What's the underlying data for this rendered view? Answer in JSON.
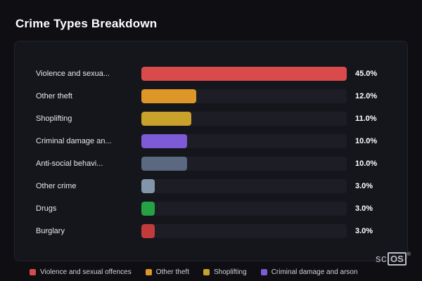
{
  "page": {
    "title": "Crime Types Breakdown"
  },
  "chart_data": {
    "type": "bar",
    "orientation": "horizontal",
    "title": "Crime Types Breakdown",
    "categories": [
      "Violence and sexual offences",
      "Other theft",
      "Shoplifting",
      "Criminal damage and arson",
      "Anti-social behaviour",
      "Other crime",
      "Drugs",
      "Burglary"
    ],
    "display_labels": [
      "Violence and sexua...",
      "Other theft",
      "Shoplifting",
      "Criminal damage an...",
      "Anti-social behavi...",
      "Other crime",
      "Drugs",
      "Burglary"
    ],
    "values": [
      45.0,
      12.0,
      11.0,
      10.0,
      10.0,
      3.0,
      3.0,
      3.0
    ],
    "value_labels": [
      "45.0%",
      "12.0%",
      "11.0%",
      "10.0%",
      "10.0%",
      "3.0%",
      "3.0%",
      "3.0%"
    ],
    "colors": [
      "#d94b4b",
      "#dc9728",
      "#c8a22b",
      "#7d5bd6",
      "#5a6880",
      "#8295ab",
      "#25a244",
      "#c23b3b"
    ],
    "xlim": [
      0,
      45
    ],
    "grid": false,
    "legend_position": "bottom",
    "legend": [
      {
        "label": "Violence and sexual offences",
        "color": "#d94b4b"
      },
      {
        "label": "Other theft",
        "color": "#dc9728"
      },
      {
        "label": "Shoplifting",
        "color": "#c8a22b"
      },
      {
        "label": "Criminal damage and arson",
        "color": "#7d5bd6"
      }
    ]
  },
  "branding": {
    "prefix": "sc",
    "suffix": "OS",
    "registered": "®"
  }
}
